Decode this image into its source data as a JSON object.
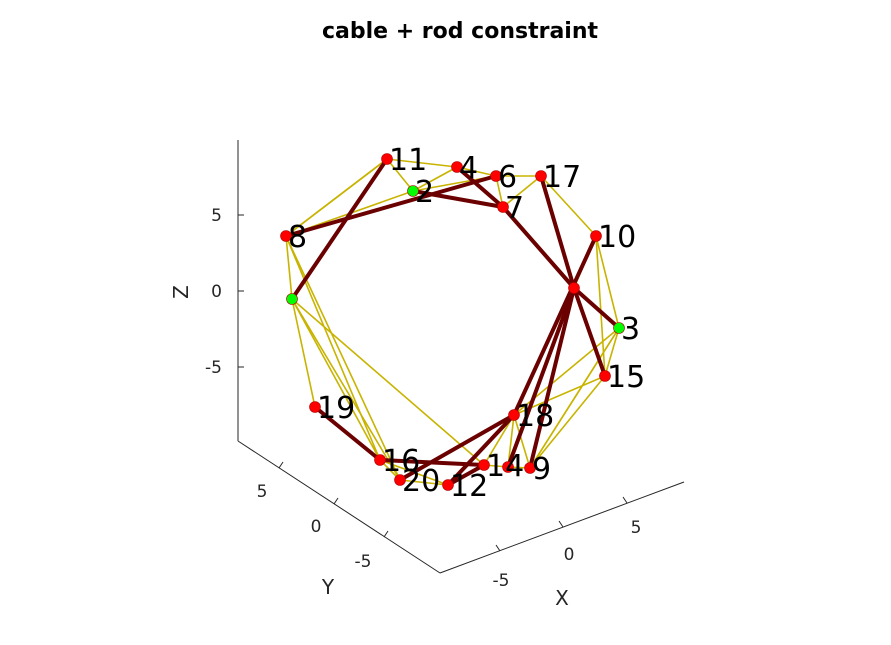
{
  "chart_data": {
    "type": "scatter",
    "title": "cable + rod constraint",
    "axes": {
      "x": {
        "label": "X",
        "ticks": [
          "-5",
          "0",
          "5"
        ]
      },
      "y": {
        "label": "Y",
        "ticks": [
          "5",
          "0",
          "-5"
        ]
      },
      "z": {
        "label": "Z",
        "ticks": [
          "5",
          "0",
          "-5"
        ]
      }
    },
    "colors": {
      "cable": "#c8b400",
      "rod": "#6b0000",
      "node_free": "#ff0000",
      "node_fixed": "#00ff00",
      "axis": "#262626"
    },
    "nodes": [
      {
        "label": "",
        "sx": 292,
        "sy": 299,
        "fixed": true
      },
      {
        "label": "2",
        "sx": 413,
        "sy": 191,
        "fixed": true
      },
      {
        "label": "3",
        "sx": 619,
        "sy": 328,
        "fixed": true
      },
      {
        "label": "4",
        "sx": 457,
        "sy": 167,
        "fixed": false
      },
      {
        "label": "",
        "sx": 574,
        "sy": 288,
        "fixed": false
      },
      {
        "label": "6",
        "sx": 496,
        "sy": 176,
        "fixed": false
      },
      {
        "label": "7",
        "sx": 503,
        "sy": 207,
        "fixed": false
      },
      {
        "label": "8",
        "sx": 286,
        "sy": 236,
        "fixed": false
      },
      {
        "label": "9",
        "sx": 530,
        "sy": 468,
        "fixed": false
      },
      {
        "label": "10",
        "sx": 596,
        "sy": 236,
        "fixed": false
      },
      {
        "label": "11",
        "sx": 387,
        "sy": 159,
        "fixed": false
      },
      {
        "label": "12",
        "sx": 448,
        "sy": 485,
        "fixed": false
      },
      {
        "label": "",
        "sx": 508,
        "sy": 467,
        "fixed": false
      },
      {
        "label": "14",
        "sx": 484,
        "sy": 465,
        "fixed": false
      },
      {
        "label": "15",
        "sx": 605,
        "sy": 376,
        "fixed": false
      },
      {
        "label": "16",
        "sx": 380,
        "sy": 460,
        "fixed": false
      },
      {
        "label": "17",
        "sx": 541,
        "sy": 176,
        "fixed": false
      },
      {
        "label": "18",
        "sx": 514,
        "sy": 415,
        "fixed": false
      },
      {
        "label": "19",
        "sx": 315,
        "sy": 407,
        "fixed": false
      },
      {
        "label": "20",
        "sx": 400,
        "sy": 480,
        "fixed": false
      }
    ],
    "cables": [
      [
        11,
        4
      ],
      [
        4,
        6
      ],
      [
        6,
        17
      ],
      [
        17,
        10
      ],
      [
        10,
        3
      ],
      [
        3,
        15
      ],
      [
        15,
        9
      ],
      [
        9,
        13
      ],
      [
        13,
        14
      ],
      [
        14,
        12
      ],
      [
        12,
        20
      ],
      [
        20,
        16
      ],
      [
        16,
        19
      ],
      [
        19,
        1
      ],
      [
        1,
        8
      ],
      [
        8,
        11
      ],
      [
        2,
        4
      ],
      [
        2,
        6
      ],
      [
        4,
        7
      ],
      [
        6,
        7
      ],
      [
        11,
        2
      ],
      [
        17,
        7
      ],
      [
        17,
        5
      ],
      [
        10,
        5
      ],
      [
        5,
        3
      ],
      [
        10,
        15
      ],
      [
        15,
        18
      ],
      [
        3,
        18
      ],
      [
        3,
        9
      ],
      [
        18,
        9
      ],
      [
        18,
        13
      ],
      [
        5,
        18
      ],
      [
        8,
        16
      ],
      [
        8,
        20
      ],
      [
        1,
        16
      ],
      [
        1,
        14
      ],
      [
        1,
        20
      ],
      [
        19,
        16
      ],
      [
        16,
        12
      ],
      [
        20,
        18
      ],
      [
        14,
        18
      ],
      [
        11,
        8
      ],
      [
        2,
        8
      ],
      [
        7,
        5
      ],
      [
        12,
        18
      ],
      [
        9,
        3
      ]
    ],
    "rods": [
      [
        8,
        6
      ],
      [
        2,
        7
      ],
      [
        11,
        1
      ],
      [
        4,
        7
      ],
      [
        7,
        5
      ],
      [
        5,
        17
      ],
      [
        5,
        15
      ],
      [
        5,
        3
      ],
      [
        5,
        13
      ],
      [
        5,
        9
      ],
      [
        10,
        18
      ],
      [
        18,
        12
      ],
      [
        19,
        16
      ],
      [
        16,
        14
      ],
      [
        12,
        14
      ],
      [
        20,
        18
      ]
    ]
  }
}
